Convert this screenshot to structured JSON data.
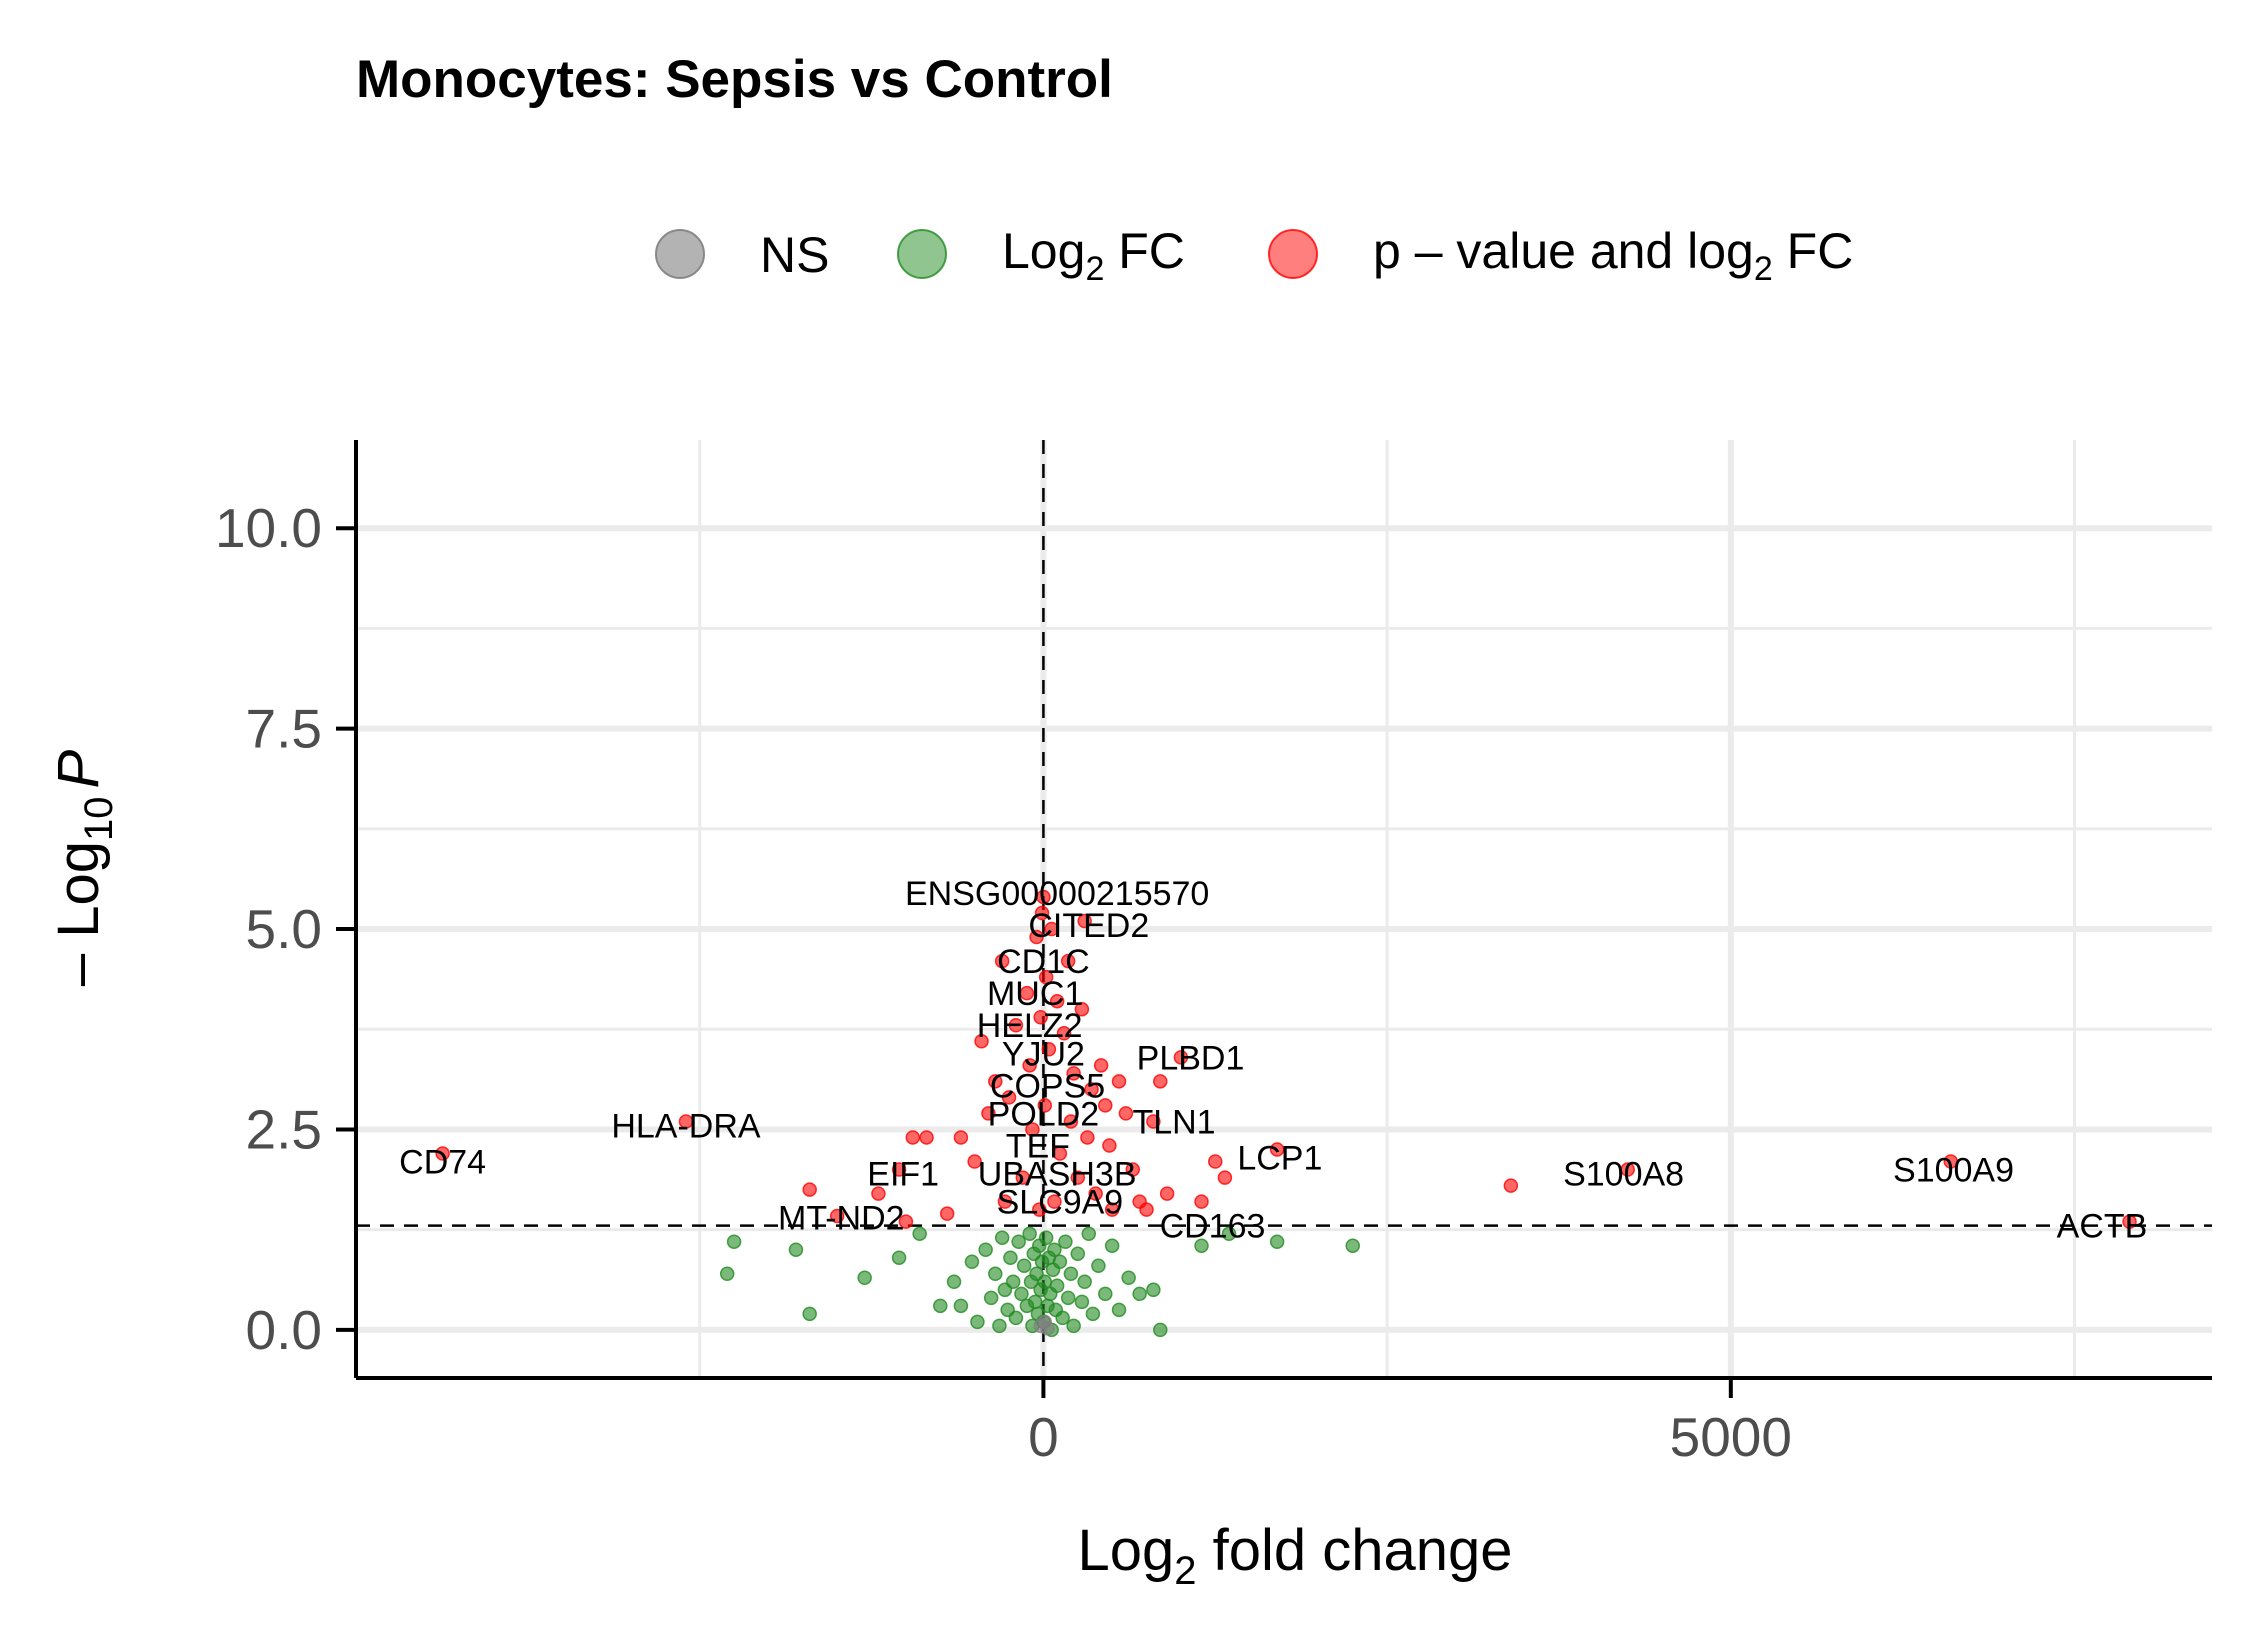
{
  "chart_data": {
    "type": "scatter",
    "title": "Monocytes: Sepsis vs Control",
    "xlabel": {
      "base": "Log",
      "sub": "2",
      "rest": " fold change"
    },
    "ylabel": {
      "prefix": "– Log",
      "sub": "10",
      "italic": "P"
    },
    "xlim": [
      -5000,
      8500
    ],
    "ylim": [
      -0.6,
      11.1
    ],
    "x_ticks": [
      0,
      5000
    ],
    "x_tick_labels": [
      "0",
      "5000"
    ],
    "y_ticks": [
      0,
      2.5,
      5,
      7.5,
      10
    ],
    "y_tick_labels": [
      "0.0",
      "2.5",
      "5.0",
      "7.5",
      "10.0"
    ],
    "x_minor_gridlines": [
      -2500,
      2500,
      7500
    ],
    "y_minor_gridlines": [
      1.25,
      3.75,
      6.25,
      8.75
    ],
    "grid": true,
    "legend_position": "top",
    "pvalue_cutoff_line": 1.3,
    "fc_cutoff_line": 0,
    "legend": [
      {
        "label": "NS",
        "color": "#808080"
      },
      {
        "label": "Log",
        "sub": "2",
        "rest": " FC",
        "color": "#228B22"
      },
      {
        "label": "p – value and log",
        "sub": "2",
        "rest": " FC",
        "color": "#ff0000"
      }
    ],
    "series": [
      {
        "name": "p – value and log2 FC",
        "color": "#ff0000",
        "points": [
          [
            -4370,
            2.2
          ],
          [
            -2600,
            2.6
          ],
          [
            -1700,
            1.75
          ],
          [
            -1500,
            1.42
          ],
          [
            -1200,
            1.7
          ],
          [
            -1050,
            2.0
          ],
          [
            -1000,
            1.35
          ],
          [
            -950,
            2.4
          ],
          [
            -850,
            2.4
          ],
          [
            -700,
            1.45
          ],
          [
            -600,
            2.4
          ],
          [
            -500,
            2.1
          ],
          [
            -450,
            3.6
          ],
          [
            -400,
            2.7
          ],
          [
            -350,
            3.1
          ],
          [
            -300,
            4.6
          ],
          [
            -280,
            1.6
          ],
          [
            -250,
            2.9
          ],
          [
            -200,
            3.8
          ],
          [
            -150,
            1.9
          ],
          [
            -120,
            4.2
          ],
          [
            -100,
            3.3
          ],
          [
            -80,
            2.5
          ],
          [
            -50,
            4.9
          ],
          [
            -30,
            1.5
          ],
          [
            -20,
            3.9
          ],
          [
            -10,
            5.2
          ],
          [
            0,
            5.4
          ],
          [
            10,
            2.8
          ],
          [
            20,
            4.4
          ],
          [
            40,
            3.5
          ],
          [
            60,
            5.0
          ],
          [
            80,
            1.6
          ],
          [
            100,
            4.1
          ],
          [
            120,
            2.2
          ],
          [
            150,
            3.7
          ],
          [
            180,
            4.6
          ],
          [
            200,
            2.6
          ],
          [
            220,
            3.2
          ],
          [
            250,
            1.9
          ],
          [
            280,
            4.0
          ],
          [
            300,
            5.1
          ],
          [
            320,
            2.4
          ],
          [
            350,
            3.0
          ],
          [
            380,
            1.7
          ],
          [
            420,
            3.3
          ],
          [
            450,
            2.8
          ],
          [
            480,
            2.3
          ],
          [
            500,
            1.5
          ],
          [
            550,
            3.1
          ],
          [
            600,
            2.7
          ],
          [
            650,
            2.0
          ],
          [
            700,
            1.6
          ],
          [
            750,
            1.5
          ],
          [
            800,
            2.6
          ],
          [
            850,
            3.1
          ],
          [
            900,
            1.7
          ],
          [
            1000,
            3.4
          ],
          [
            1150,
            1.6
          ],
          [
            1250,
            2.1
          ],
          [
            1320,
            1.9
          ],
          [
            1700,
            2.25
          ],
          [
            3400,
            1.8
          ],
          [
            4250,
            2.0
          ],
          [
            6600,
            2.1
          ],
          [
            7900,
            1.35
          ]
        ]
      },
      {
        "name": "Log2 FC",
        "color": "#228B22",
        "points": [
          [
            -2300,
            0.7
          ],
          [
            -2250,
            1.1
          ],
          [
            -1800,
            1.0
          ],
          [
            -1700,
            0.2
          ],
          [
            -1300,
            0.65
          ],
          [
            -1050,
            0.9
          ],
          [
            -900,
            1.2
          ],
          [
            -750,
            0.3
          ],
          [
            -650,
            0.6
          ],
          [
            -600,
            0.3
          ],
          [
            -520,
            0.85
          ],
          [
            -480,
            0.1
          ],
          [
            -420,
            1.0
          ],
          [
            -380,
            0.4
          ],
          [
            -350,
            0.7
          ],
          [
            -320,
            0.05
          ],
          [
            -300,
            1.15
          ],
          [
            -280,
            0.5
          ],
          [
            -260,
            0.25
          ],
          [
            -240,
            0.9
          ],
          [
            -220,
            0.6
          ],
          [
            -200,
            0.15
          ],
          [
            -180,
            1.1
          ],
          [
            -160,
            0.45
          ],
          [
            -140,
            0.8
          ],
          [
            -120,
            0.3
          ],
          [
            -100,
            1.2
          ],
          [
            -90,
            0.6
          ],
          [
            -80,
            0.05
          ],
          [
            -70,
            0.95
          ],
          [
            -60,
            0.35
          ],
          [
            -50,
            0.7
          ],
          [
            -40,
            0.2
          ],
          [
            -30,
            1.05
          ],
          [
            -20,
            0.5
          ],
          [
            -10,
            0.85
          ],
          [
            0,
            0.1
          ],
          [
            10,
            0.6
          ],
          [
            20,
            1.15
          ],
          [
            30,
            0.3
          ],
          [
            40,
            0.9
          ],
          [
            50,
            0.45
          ],
          [
            60,
            0.0
          ],
          [
            70,
            0.75
          ],
          [
            80,
            1.0
          ],
          [
            90,
            0.25
          ],
          [
            100,
            0.55
          ],
          [
            120,
            0.85
          ],
          [
            140,
            0.15
          ],
          [
            160,
            1.1
          ],
          [
            180,
            0.4
          ],
          [
            200,
            0.7
          ],
          [
            220,
            0.05
          ],
          [
            250,
            0.95
          ],
          [
            280,
            0.35
          ],
          [
            300,
            0.6
          ],
          [
            330,
            1.2
          ],
          [
            360,
            0.2
          ],
          [
            400,
            0.8
          ],
          [
            450,
            0.45
          ],
          [
            500,
            1.05
          ],
          [
            550,
            0.25
          ],
          [
            620,
            0.65
          ],
          [
            700,
            0.45
          ],
          [
            800,
            0.5
          ],
          [
            850,
            0.0
          ],
          [
            1150,
            1.05
          ],
          [
            1350,
            1.2
          ],
          [
            1700,
            1.1
          ],
          [
            2250,
            1.05
          ]
        ]
      },
      {
        "name": "NS",
        "color": "#808080",
        "points": [
          [
            -20,
            0.05
          ],
          [
            10,
            0.1
          ],
          [
            30,
            0.02
          ]
        ]
      }
    ],
    "annotations": [
      {
        "text": "ENSG00000215570",
        "x": 100,
        "y": 5.45
      },
      {
        "text": "CITED2",
        "x": 330,
        "y": 5.05
      },
      {
        "text": "CD1C",
        "x": 0,
        "y": 4.6
      },
      {
        "text": "MUC1",
        "x": -60,
        "y": 4.2
      },
      {
        "text": "HELZ2",
        "x": -100,
        "y": 3.8
      },
      {
        "text": "PLBD1",
        "x": 1070,
        "y": 3.4
      },
      {
        "text": "YJU2",
        "x": 0,
        "y": 3.45
      },
      {
        "text": "COPS5",
        "x": 30,
        "y": 3.05
      },
      {
        "text": "POLD2",
        "x": 0,
        "y": 2.7
      },
      {
        "text": "TLN1",
        "x": 950,
        "y": 2.6
      },
      {
        "text": "HLA-DRA",
        "x": -2600,
        "y": 2.55
      },
      {
        "text": "TEF",
        "x": -40,
        "y": 2.3
      },
      {
        "text": "CD74",
        "x": -4370,
        "y": 2.1
      },
      {
        "text": "LCP1",
        "x": 1720,
        "y": 2.15
      },
      {
        "text": "S100A9",
        "x": 6620,
        "y": 2.0
      },
      {
        "text": "EIF1",
        "x": -1020,
        "y": 1.95
      },
      {
        "text": "UBASH3B",
        "x": 100,
        "y": 1.95
      },
      {
        "text": "S100A8",
        "x": 4220,
        "y": 1.95
      },
      {
        "text": "SLC9A9",
        "x": 120,
        "y": 1.6
      },
      {
        "text": "MT-ND2",
        "x": -1470,
        "y": 1.4
      },
      {
        "text": "CD163",
        "x": 1230,
        "y": 1.3
      },
      {
        "text": "ACTB",
        "x": 7700,
        "y": 1.3
      }
    ]
  }
}
